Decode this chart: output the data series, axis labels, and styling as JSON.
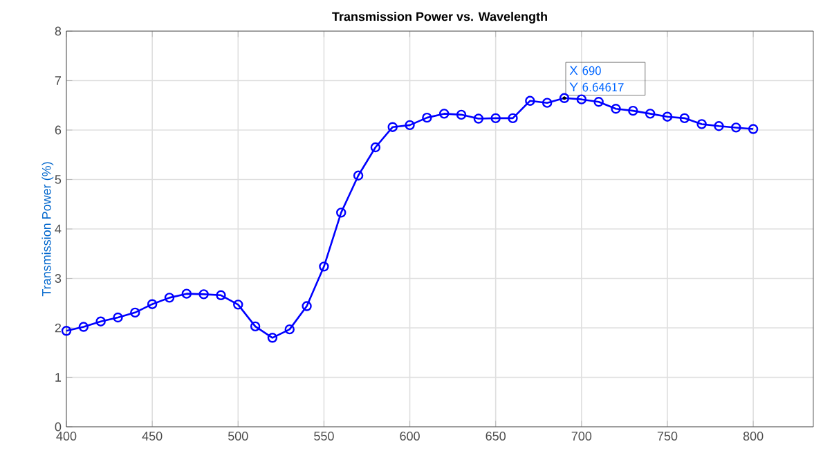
{
  "chart_data": {
    "type": "line",
    "title": "Transmission Power vs. Wavelength",
    "ylabel": "Transmission Power (%)",
    "x": [
      400,
      410,
      420,
      430,
      440,
      450,
      460,
      470,
      480,
      490,
      500,
      510,
      520,
      530,
      540,
      550,
      560,
      570,
      580,
      590,
      600,
      610,
      620,
      630,
      640,
      650,
      660,
      670,
      680,
      690,
      700,
      710,
      720,
      730,
      740,
      750,
      760,
      770,
      780,
      790,
      800
    ],
    "series": [
      {
        "color": "#0000ff",
        "values": [
          1.94,
          2.02,
          2.13,
          2.21,
          2.31,
          2.48,
          2.61,
          2.69,
          2.68,
          2.66,
          2.47,
          2.03,
          1.8,
          1.97,
          2.44,
          3.24,
          4.33,
          5.08,
          5.65,
          6.06,
          6.1,
          6.25,
          6.33,
          6.31,
          6.23,
          6.24,
          6.24,
          6.59,
          6.55,
          6.64617,
          6.62,
          6.57,
          6.43,
          6.39,
          6.33,
          6.27,
          6.24,
          6.12,
          6.08,
          6.05,
          6.02
        ]
      }
    ],
    "xlim": [
      400,
      835
    ],
    "ylim": [
      0,
      8
    ],
    "xticks": [
      400,
      450,
      500,
      550,
      600,
      650,
      700,
      750,
      800
    ],
    "yticks": [
      0,
      1,
      2,
      3,
      4,
      5,
      6,
      7,
      8
    ],
    "grid": true,
    "marker": "circle",
    "line_style": "solid",
    "annotations": [
      {
        "text": "X 690",
        "x": 690,
        "y": 6.64617
      },
      {
        "text": "Y 6.64617",
        "x": 690,
        "y": 6.64617
      }
    ]
  }
}
